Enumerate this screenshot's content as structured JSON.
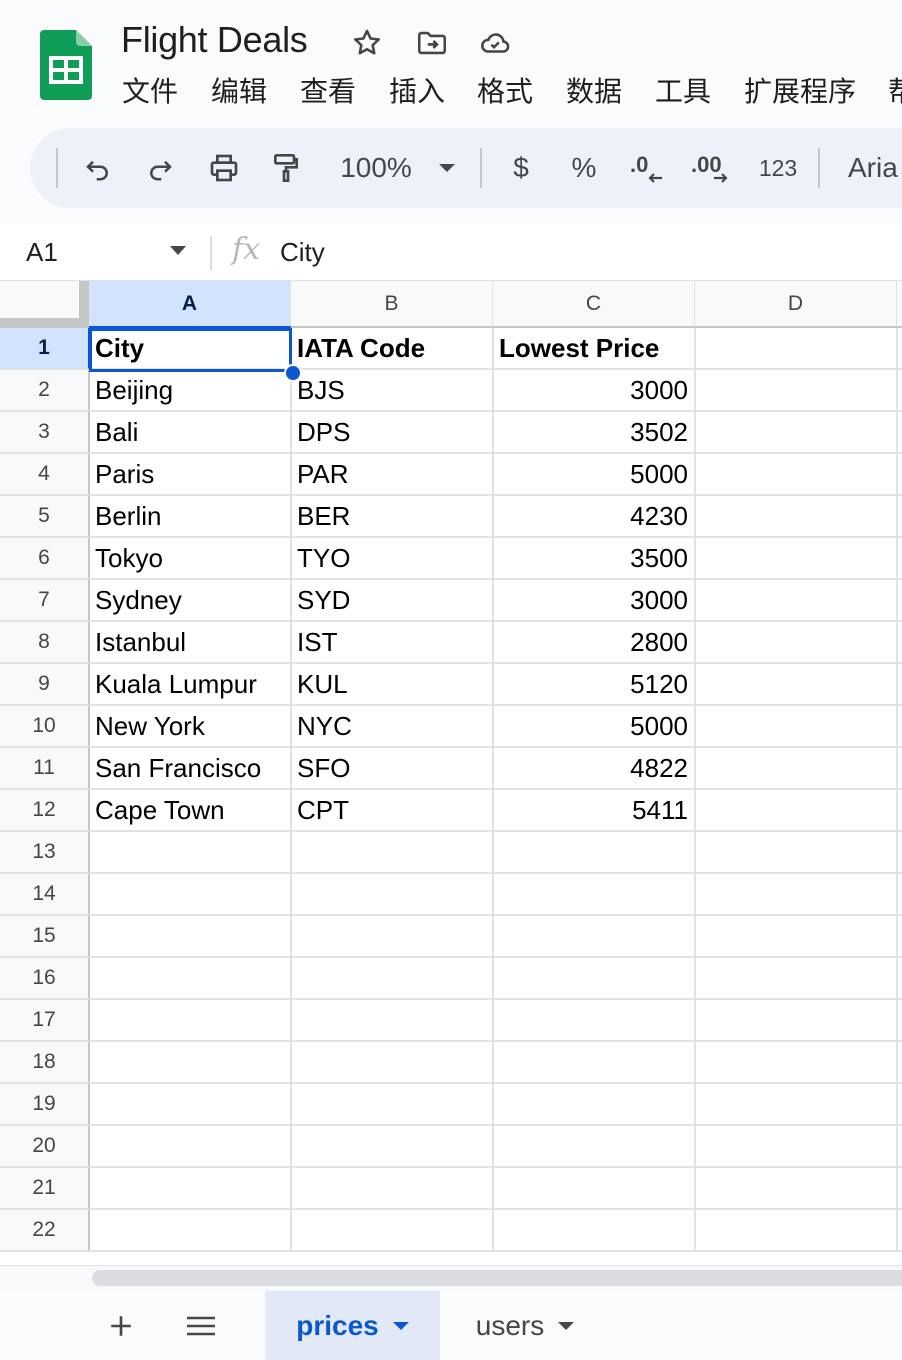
{
  "header": {
    "title": "Flight Deals",
    "menu": [
      "文件",
      "编辑",
      "查看",
      "插入",
      "格式",
      "数据",
      "工具",
      "扩展程序",
      "帮"
    ]
  },
  "toolbar": {
    "zoom": "100%",
    "currency": "$",
    "percent": "%",
    "decrease_decimal": ".0",
    "increase_decimal": ".00",
    "number_format": "123",
    "font": "Aria"
  },
  "formula_bar": {
    "cell_ref": "A1",
    "fx": "fx",
    "content": "City"
  },
  "grid": {
    "columns": [
      "A",
      "B",
      "C",
      "D"
    ],
    "row_numbers": [
      "1",
      "2",
      "3",
      "4",
      "5",
      "6",
      "7",
      "8",
      "9",
      "10",
      "11",
      "12",
      "13",
      "14",
      "15",
      "16",
      "17",
      "18",
      "19",
      "20",
      "21",
      "22"
    ],
    "header_row": [
      "City",
      "IATA Code",
      "Lowest Price"
    ],
    "rows": [
      [
        "Beijing",
        "BJS",
        "3000"
      ],
      [
        "Bali",
        "DPS",
        "3502"
      ],
      [
        "Paris",
        "PAR",
        "5000"
      ],
      [
        "Berlin",
        "BER",
        "4230"
      ],
      [
        "Tokyo",
        "TYO",
        "3500"
      ],
      [
        "Sydney",
        "SYD",
        "3000"
      ],
      [
        "Istanbul",
        "IST",
        "2800"
      ],
      [
        "Kuala Lumpur",
        "KUL",
        "5120"
      ],
      [
        "New York",
        "NYC",
        "5000"
      ],
      [
        "San Francisco",
        "SFO",
        "4822"
      ],
      [
        "Cape Town",
        "CPT",
        "5411"
      ]
    ],
    "selected_cell": "A1"
  },
  "sheet_tabs": [
    {
      "label": "prices",
      "active": true
    },
    {
      "label": "users",
      "active": false
    }
  ],
  "colors": {
    "accent": "#0b57d0",
    "sheets_green": "#0f9d58",
    "selection_fill": "#d3e3fd"
  }
}
